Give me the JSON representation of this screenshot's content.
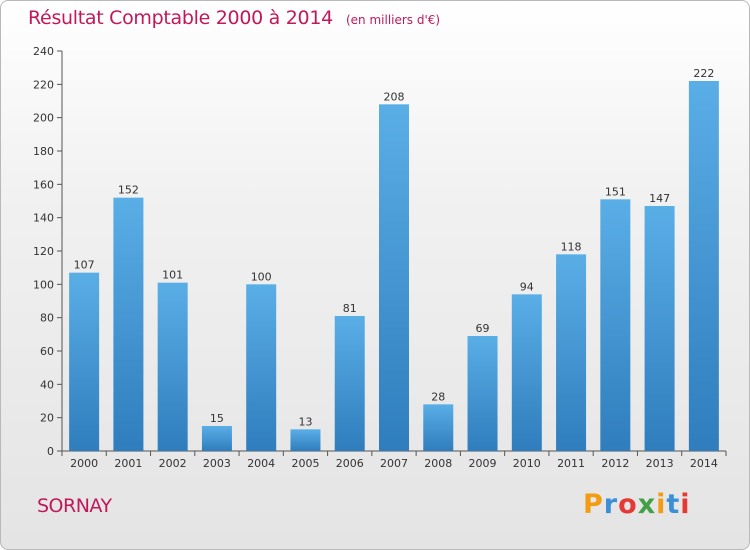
{
  "chart_data": {
    "type": "bar",
    "title": "Résultat Comptable 2000 à 2014",
    "subtitle": "(en milliers d'€)",
    "categories": [
      "2000",
      "2001",
      "2002",
      "2003",
      "2004",
      "2005",
      "2006",
      "2007",
      "2008",
      "2009",
      "2010",
      "2011",
      "2012",
      "2013",
      "2014"
    ],
    "values": [
      107,
      152,
      101,
      15,
      100,
      13,
      81,
      208,
      28,
      69,
      94,
      118,
      151,
      147,
      222
    ],
    "ylim": [
      0,
      240
    ],
    "yticks": [
      0,
      20,
      40,
      60,
      80,
      100,
      120,
      140,
      160,
      180,
      200,
      220,
      240
    ],
    "grid": false,
    "bar_color_top": "#5aaee6",
    "bar_color_bottom": "#2f7dbd"
  },
  "footer": {
    "commune": "SORNAY",
    "logo_letters": [
      "P",
      "r",
      "o",
      "x",
      "i",
      "t",
      "i"
    ],
    "logo_colors": [
      "#f39c12",
      "#3b8fd6",
      "#e53935",
      "#43a047",
      "#f39c12",
      "#3b8fd6",
      "#e53935"
    ]
  }
}
